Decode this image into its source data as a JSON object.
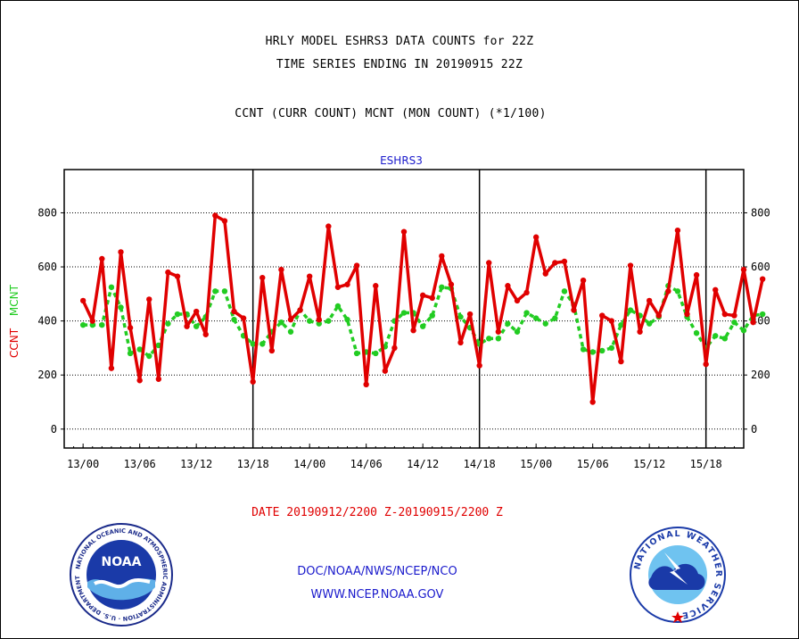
{
  "header": {
    "title_line1": "HRLY MODEL ESHRS3 DATA COUNTS for 22Z",
    "title_line2": "TIME SERIES ENDING IN 20190915 22Z",
    "subtitle": "CCNT (CURR COUNT) MCNT (MON COUNT) (*1/100)"
  },
  "footer": {
    "date_range": "DATE 20190912/2200 Z-20190915/2200 Z",
    "org": "DOC/NOAA/NWS/NCEP/NCO",
    "url": "WWW.NCEP.NOAA.GOV"
  },
  "logos": {
    "noaa_text": "NOAA",
    "noaa_ring": "NATIONAL OCEANIC AND ATMOSPHERIC ADMINISTRATION · U.S. DEPARTMENT OF COMMERCE",
    "nws_ring": "NATIONAL WEATHER SERVICE"
  },
  "chart_data": {
    "type": "line",
    "title": "ESHRS3",
    "ylabel_parts": [
      {
        "text": "CCNT",
        "color": "#e00000"
      },
      {
        "text": "MCNT",
        "color": "#22cc22"
      }
    ],
    "ylim": [
      -70,
      960
    ],
    "yticks": [
      0,
      200,
      400,
      600,
      800
    ],
    "x_start_hour": -2,
    "x_end_hour": 70,
    "xticks": [
      {
        "hour": 0,
        "label": "13/00"
      },
      {
        "hour": 6,
        "label": "13/06"
      },
      {
        "hour": 12,
        "label": "13/12"
      },
      {
        "hour": 18,
        "label": "13/18"
      },
      {
        "hour": 24,
        "label": "14/00"
      },
      {
        "hour": 30,
        "label": "14/06"
      },
      {
        "hour": 36,
        "label": "14/12"
      },
      {
        "hour": 42,
        "label": "14/18"
      },
      {
        "hour": 48,
        "label": "15/00"
      },
      {
        "hour": 54,
        "label": "15/06"
      },
      {
        "hour": 60,
        "label": "15/12"
      },
      {
        "hour": 66,
        "label": "15/18"
      }
    ],
    "day_separator_hours": [
      18,
      42,
      66
    ],
    "grid": true,
    "series": [
      {
        "name": "CCNT",
        "color": "#e00000",
        "style": "solid",
        "values": [
          475,
          400,
          630,
          225,
          655,
          375,
          180,
          480,
          185,
          580,
          565,
          380,
          435,
          350,
          790,
          770,
          435,
          410,
          175,
          560,
          290,
          590,
          405,
          440,
          565,
          405,
          750,
          525,
          535,
          605,
          165,
          530,
          215,
          300,
          730,
          365,
          495,
          485,
          640,
          535,
          320,
          425,
          235,
          615,
          360,
          530,
          475,
          505,
          710,
          575,
          615,
          620,
          440,
          550,
          100,
          420,
          400,
          250,
          605,
          360,
          475,
          420,
          510,
          735,
          425,
          570,
          240,
          515,
          425,
          420,
          590,
          395,
          555
        ]
      },
      {
        "name": "MCNT",
        "color": "#22cc22",
        "style": "dashed",
        "values": [
          385,
          385,
          385,
          525,
          450,
          280,
          295,
          270,
          310,
          390,
          425,
          425,
          380,
          415,
          510,
          510,
          405,
          345,
          315,
          315,
          360,
          395,
          360,
          440,
          400,
          390,
          400,
          455,
          405,
          280,
          285,
          280,
          305,
          400,
          430,
          430,
          380,
          420,
          525,
          520,
          415,
          375,
          315,
          335,
          335,
          390,
          360,
          430,
          410,
          390,
          410,
          510,
          460,
          295,
          285,
          290,
          300,
          385,
          440,
          420,
          390,
          415,
          530,
          510,
          415,
          355,
          300,
          345,
          335,
          395,
          365,
          420,
          425
        ]
      }
    ]
  }
}
